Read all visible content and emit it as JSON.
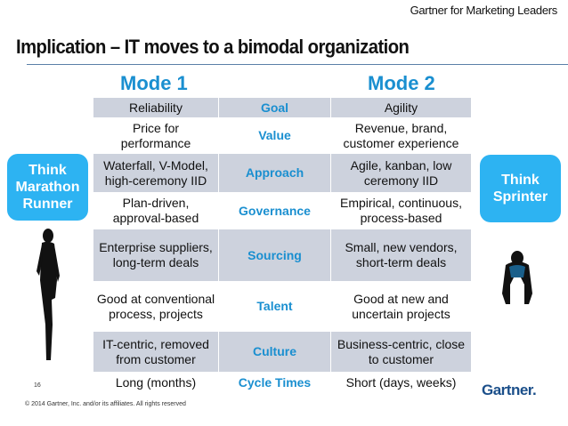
{
  "header": {
    "brand": "Gartner for Marketing Leaders",
    "title": "Implication  – IT moves to a bimodal organization"
  },
  "modes": {
    "mode1": "Mode 1",
    "mode2": "Mode 2"
  },
  "rows": [
    {
      "mode1": "Reliability",
      "dimension": "Goal",
      "mode2": "Agility"
    },
    {
      "mode1": "Price for performance",
      "dimension": "Value",
      "mode2": "Revenue, brand, customer experience"
    },
    {
      "mode1": "Waterfall, V-Model, high-ceremony IID",
      "dimension": "Approach",
      "mode2": "Agile, kanban, low ceremony IID"
    },
    {
      "mode1": "Plan-driven, approval-based",
      "dimension": "Governance",
      "mode2": "Empirical, continuous, process-based"
    },
    {
      "mode1": "Enterprise suppliers, long-term deals",
      "dimension": "Sourcing",
      "mode2": "Small, new vendors, short-term deals"
    },
    {
      "mode1": "Good at conventional process, projects",
      "dimension": "Talent",
      "mode2": "Good at new and uncertain projects"
    },
    {
      "mode1": "IT-centric, removed from customer",
      "dimension": "Culture",
      "mode2": "Business-centric, close to customer"
    },
    {
      "mode1": "Long (months)",
      "dimension": "Cycle Times",
      "mode2": "Short (days, weeks)"
    }
  ],
  "callouts": {
    "left": "Think Marathon Runner",
    "right": "Think Sprinter"
  },
  "footer": {
    "page": "16",
    "copyright": "© 2014 Gartner, Inc. and/or its affiliates. All rights reserved",
    "logo": "Gartner."
  },
  "colors": {
    "accent": "#1a8fd0",
    "callout": "#2db3f2",
    "shade": "#cdd2dd"
  }
}
